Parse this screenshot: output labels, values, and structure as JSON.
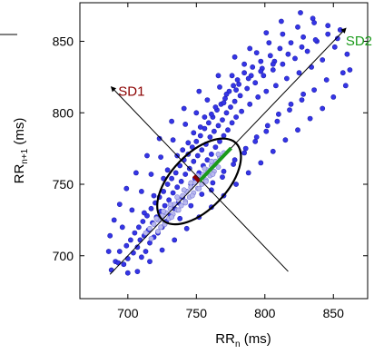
{
  "chart_data": {
    "type": "scatter",
    "title": "",
    "xlabel": {
      "base": "RR",
      "sub": "n",
      "unit": " (ms)"
    },
    "ylabel": {
      "base": "RR",
      "sub": "n+1",
      "unit": " (ms)"
    },
    "xlim": [
      665,
      875
    ],
    "ylim": [
      670,
      877
    ],
    "xticks": [
      700,
      750,
      800,
      850
    ],
    "yticks": [
      700,
      750,
      800,
      850
    ],
    "xtick_labels": [
      "700",
      "750",
      "800",
      "850"
    ],
    "ytick_labels": [
      "700",
      "750",
      "800",
      "850"
    ],
    "grid": false,
    "colors": {
      "points": "#3535e6",
      "dense_points": "#b9b9ee",
      "ellipse": "#000000",
      "sd1": "#8b0000",
      "sd2": "#1a9a1a",
      "axes": "#000000"
    },
    "annotations": [
      {
        "text": "SD1",
        "x": 693,
        "y": 812,
        "color": "#8b0000"
      },
      {
        "text": "SD2",
        "x": 859,
        "y": 847,
        "color": "#1a9a1a"
      }
    ],
    "identity_line": {
      "from": [
        687,
        687
      ],
      "to": [
        859,
        859
      ]
    },
    "sd1_axis": {
      "from": [
        688,
        818
      ],
      "to": [
        817,
        689
      ]
    },
    "ellipse": {
      "center": [
        752,
        752
      ],
      "sd1": 5.5,
      "sd2": 33
    },
    "series": [
      {
        "values": [
          [
            688,
            690
          ],
          [
            691,
            696
          ],
          [
            694,
            703
          ],
          [
            697,
            694
          ],
          [
            699,
            707
          ],
          [
            700,
            698
          ],
          [
            702,
            711
          ],
          [
            704,
            702
          ],
          [
            705,
            716
          ],
          [
            707,
            706
          ],
          [
            708,
            720
          ],
          [
            709,
            711
          ],
          [
            710,
            699
          ],
          [
            711,
            724
          ],
          [
            712,
            714
          ],
          [
            713,
            703
          ],
          [
            714,
            728
          ],
          [
            715,
            718
          ],
          [
            716,
            709
          ],
          [
            717,
            733
          ],
          [
            718,
            723
          ],
          [
            719,
            713
          ],
          [
            720,
            737
          ],
          [
            721,
            727
          ],
          [
            722,
            716
          ],
          [
            723,
            741
          ],
          [
            724,
            731
          ],
          [
            725,
            720
          ],
          [
            726,
            745
          ],
          [
            727,
            735
          ],
          [
            728,
            724
          ],
          [
            729,
            750
          ],
          [
            730,
            739
          ],
          [
            731,
            728
          ],
          [
            732,
            754
          ],
          [
            733,
            744
          ],
          [
            734,
            733
          ],
          [
            735,
            758
          ],
          [
            736,
            748
          ],
          [
            737,
            737
          ],
          [
            738,
            763
          ],
          [
            739,
            752
          ],
          [
            740,
            741
          ],
          [
            741,
            767
          ],
          [
            742,
            757
          ],
          [
            743,
            745
          ],
          [
            744,
            771
          ],
          [
            745,
            761
          ],
          [
            746,
            750
          ],
          [
            747,
            776
          ],
          [
            748,
            766
          ],
          [
            749,
            754
          ],
          [
            750,
            780
          ],
          [
            751,
            770
          ],
          [
            752,
            758
          ],
          [
            753,
            784
          ],
          [
            754,
            774
          ],
          [
            755,
            763
          ],
          [
            756,
            789
          ],
          [
            757,
            778
          ],
          [
            758,
            767
          ],
          [
            759,
            793
          ],
          [
            760,
            783
          ],
          [
            761,
            771
          ],
          [
            762,
            797
          ],
          [
            763,
            787
          ],
          [
            764,
            776
          ],
          [
            765,
            802
          ],
          [
            766,
            791
          ],
          [
            767,
            780
          ],
          [
            768,
            806
          ],
          [
            769,
            795
          ],
          [
            770,
            784
          ],
          [
            771,
            810
          ],
          [
            772,
            800
          ],
          [
            773,
            788
          ],
          [
            774,
            815
          ],
          [
            775,
            804
          ],
          [
            776,
            793
          ],
          [
            777,
            819
          ],
          [
            778,
            808
          ],
          [
            779,
            797
          ],
          [
            780,
            823
          ],
          [
            782,
            812
          ],
          [
            783,
            801
          ],
          [
            785,
            828
          ],
          [
            787,
            817
          ],
          [
            789,
            806
          ],
          [
            791,
            832
          ],
          [
            793,
            821
          ],
          [
            795,
            811
          ],
          [
            797,
            836
          ],
          [
            799,
            826
          ],
          [
            801,
            815
          ],
          [
            804,
            840
          ],
          [
            806,
            830
          ],
          [
            808,
            819
          ],
          [
            811,
            845
          ],
          [
            813,
            834
          ],
          [
            816,
            824
          ],
          [
            819,
            849
          ],
          [
            822,
            838
          ],
          [
            825,
            828
          ],
          [
            828,
            853
          ],
          [
            831,
            843
          ],
          [
            834,
            832
          ],
          [
            838,
            850
          ],
          [
            842,
            837
          ],
          [
            846,
            855
          ],
          [
            851,
            846
          ],
          [
            855,
            858
          ],
          [
            857,
            828
          ],
          [
            835,
            866
          ],
          [
            826,
            870
          ],
          [
            812,
            864
          ],
          [
            801,
            856
          ],
          [
            789,
            845
          ],
          [
            778,
            839
          ],
          [
            766,
            826
          ],
          [
            752,
            815
          ],
          [
            741,
            803
          ],
          [
            732,
            794
          ],
          [
            723,
            782
          ],
          [
            714,
            770
          ],
          [
            706,
            758
          ],
          [
            699,
            747
          ],
          [
            694,
            736
          ],
          [
            690,
            725
          ],
          [
            687,
            714
          ],
          [
            686,
            703
          ],
          [
            696,
            720
          ],
          [
            703,
            732
          ],
          [
            710,
            745
          ],
          [
            717,
            757
          ],
          [
            724,
            769
          ],
          [
            733,
            781
          ],
          [
            742,
            792
          ],
          [
            750,
            800
          ],
          [
            758,
            809
          ],
          [
            767,
            818
          ],
          [
            776,
            826
          ],
          [
            785,
            834
          ],
          [
            794,
            842
          ],
          [
            803,
            849
          ],
          [
            813,
            855
          ],
          [
            824,
            860
          ],
          [
            836,
            863
          ],
          [
            846,
            861
          ],
          [
            853,
            852
          ],
          [
            860,
            841
          ],
          [
            862,
            830
          ],
          [
            859,
            819
          ],
          [
            850,
            811
          ],
          [
            842,
            803
          ],
          [
            833,
            796
          ],
          [
            824,
            788
          ],
          [
            815,
            781
          ],
          [
            806,
            773
          ],
          [
            797,
            765
          ],
          [
            788,
            758
          ],
          [
            779,
            750
          ],
          [
            770,
            742
          ],
          [
            761,
            734
          ],
          [
            752,
            727
          ],
          [
            743,
            719
          ],
          [
            734,
            711
          ],
          [
            725,
            704
          ],
          [
            716,
            696
          ],
          [
            707,
            689
          ],
          [
            700,
            688
          ],
          [
            693,
            695
          ],
          [
            712,
            730
          ],
          [
            719,
            742
          ],
          [
            726,
            754
          ],
          [
            740,
            774
          ],
          [
            748,
            786
          ],
          [
            756,
            797
          ],
          [
            764,
            804
          ],
          [
            772,
            813
          ],
          [
            781,
            820
          ],
          [
            790,
            826
          ],
          [
            798,
            831
          ],
          [
            807,
            836
          ],
          [
            817,
            841
          ],
          [
            827,
            846
          ],
          [
            837,
            851
          ],
          [
            729,
            760
          ],
          [
            736,
            770
          ],
          [
            744,
            779
          ],
          [
            753,
            790
          ],
          [
            761,
            799
          ],
          [
            770,
            807
          ],
          [
            779,
            816
          ],
          [
            788,
            824
          ],
          [
            797,
            829
          ],
          [
            806,
            834
          ],
          [
            761,
            746
          ],
          [
            769,
            755
          ],
          [
            777,
            764
          ],
          [
            785,
            772
          ],
          [
            793,
            780
          ],
          [
            801,
            787
          ],
          [
            809,
            794
          ],
          [
            818,
            802
          ],
          [
            827,
            809
          ],
          [
            836,
            816
          ],
          [
            845,
            823
          ],
          [
            738,
            726
          ],
          [
            746,
            735
          ],
          [
            754,
            743
          ],
          [
            762,
            751
          ],
          [
            770,
            759
          ],
          [
            778,
            767
          ],
          [
            786,
            775
          ],
          [
            794,
            783
          ],
          [
            802,
            791
          ],
          [
            810,
            799
          ],
          [
            819,
            806
          ],
          [
            828,
            813
          ]
        ]
      },
      {
        "values": [
          [
            713,
            716
          ],
          [
            716,
            719
          ],
          [
            719,
            722
          ],
          [
            722,
            725
          ],
          [
            725,
            728
          ],
          [
            728,
            730
          ],
          [
            731,
            733
          ],
          [
            734,
            736
          ],
          [
            737,
            739
          ],
          [
            740,
            742
          ],
          [
            743,
            745
          ],
          [
            746,
            748
          ],
          [
            749,
            751
          ],
          [
            752,
            754
          ],
          [
            755,
            757
          ],
          [
            758,
            760
          ],
          [
            761,
            763
          ],
          [
            764,
            766
          ],
          [
            767,
            769
          ],
          [
            770,
            772
          ],
          [
            724,
            720
          ],
          [
            727,
            723
          ],
          [
            730,
            726
          ],
          [
            733,
            729
          ],
          [
            736,
            732
          ],
          [
            739,
            735
          ],
          [
            742,
            738
          ],
          [
            745,
            741
          ],
          [
            748,
            744
          ],
          [
            751,
            747
          ],
          [
            754,
            750
          ],
          [
            757,
            753
          ],
          [
            760,
            756
          ],
          [
            763,
            759
          ],
          [
            766,
            762
          ],
          [
            721,
            726
          ],
          [
            726,
            731
          ],
          [
            731,
            736
          ],
          [
            736,
            741
          ],
          [
            741,
            746
          ],
          [
            746,
            751
          ],
          [
            751,
            756
          ],
          [
            756,
            761
          ],
          [
            761,
            766
          ],
          [
            766,
            771
          ],
          [
            717,
            712
          ],
          [
            722,
            717
          ],
          [
            727,
            722
          ],
          [
            732,
            727
          ],
          [
            737,
            732
          ],
          [
            742,
            737
          ],
          [
            747,
            742
          ],
          [
            752,
            747
          ],
          [
            757,
            752
          ],
          [
            762,
            757
          ]
        ]
      }
    ]
  }
}
